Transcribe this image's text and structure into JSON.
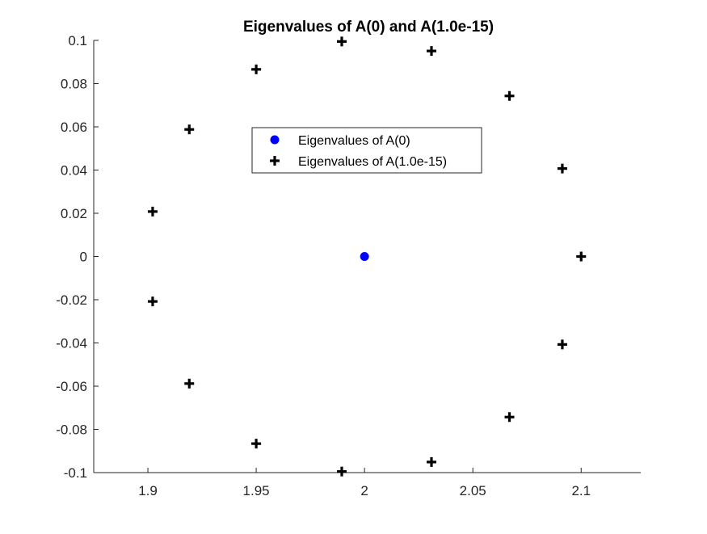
{
  "chart_data": {
    "type": "scatter",
    "title": "Eigenvalues of A(0) and A(1.0e-15)",
    "xlabel": "",
    "ylabel": "",
    "xlim": [
      1.875,
      2.1275
    ],
    "ylim": [
      -0.1,
      0.1
    ],
    "grid": false,
    "box": false,
    "legend_position": "upper-center",
    "x_ticks": [
      1.9,
      1.95,
      2.0,
      2.05,
      2.1
    ],
    "x_tick_labels": [
      "1.9",
      "1.95",
      "2",
      "2.05",
      "2.1"
    ],
    "y_ticks": [
      0.1,
      0.08,
      0.06,
      0.04,
      0.02,
      0,
      -0.02,
      -0.04,
      -0.06,
      -0.08,
      -0.1
    ],
    "y_tick_labels": [
      "0.1",
      "0.08",
      "0.06",
      "0.04",
      "0.02",
      "0",
      "-0.02",
      "-0.04",
      "-0.06",
      "-0.08",
      "-0.1"
    ],
    "series": [
      {
        "name": "Eigenvalues of A(0)",
        "marker": "circle",
        "color": "#0000ff",
        "points": [
          {
            "x": 2.0,
            "y": 0.0
          }
        ]
      },
      {
        "name": "Eigenvalues of A(1.0e-15)",
        "marker": "plus",
        "color": "#000000",
        "points": [
          {
            "x": 2.1,
            "y": 0.0
          },
          {
            "x": 2.0913,
            "y": 0.0407
          },
          {
            "x": 2.0669,
            "y": 0.0743
          },
          {
            "x": 2.0309,
            "y": 0.0951
          },
          {
            "x": 1.9895,
            "y": 0.0995
          },
          {
            "x": 1.95,
            "y": 0.0866
          },
          {
            "x": 1.9191,
            "y": 0.0588
          },
          {
            "x": 1.9022,
            "y": 0.0208
          },
          {
            "x": 1.9022,
            "y": -0.0208
          },
          {
            "x": 1.9191,
            "y": -0.0588
          },
          {
            "x": 1.95,
            "y": -0.0866
          },
          {
            "x": 1.9895,
            "y": -0.0995
          },
          {
            "x": 2.0309,
            "y": -0.0951
          },
          {
            "x": 2.0669,
            "y": -0.0743
          },
          {
            "x": 2.0913,
            "y": -0.0407
          }
        ]
      }
    ]
  }
}
